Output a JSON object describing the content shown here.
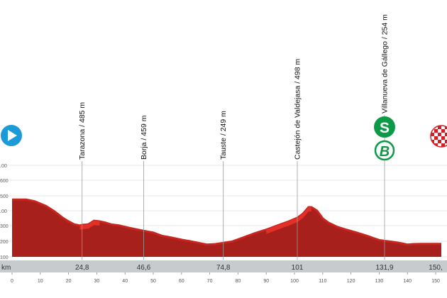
{
  "chart_data": {
    "type": "area",
    "title": "",
    "xlabel": "",
    "ylabel": "",
    "xlim": [
      0,
      152
    ],
    "ylim": [
      0,
      650
    ],
    "x_ticks": [
      0,
      10,
      20,
      30,
      40,
      50,
      60,
      70,
      80,
      90,
      100,
      110,
      120,
      130,
      140,
      150
    ],
    "y_axis_labels": [
      ".00",
      "600",
      "500",
      ".00",
      "300",
      "200",
      "100"
    ],
    "km_bar_labels": [
      "km",
      "24,8",
      "46,6",
      "74,8",
      "101",
      "131,9",
      "150,"
    ],
    "colors": {
      "fill": "#a8201c",
      "fill_top": "#c8251f",
      "highlight": "#e8322a",
      "km_bar": "#c8cbcd",
      "start_icon": "#1a9ad6",
      "sprint_green": "#0d9a48",
      "finish_red": "#d41f26"
    },
    "series": [
      {
        "x": [
          0,
          5,
          8,
          10,
          12,
          15,
          18,
          20,
          22,
          24,
          24.8,
          27,
          29,
          31,
          33,
          35,
          38,
          41,
          44,
          46.6,
          50,
          53,
          56,
          60,
          63,
          66,
          69,
          72,
          74.8,
          78,
          82,
          86,
          90,
          94,
          98,
          101,
          103,
          105,
          106,
          108,
          110,
          112,
          115,
          118,
          122,
          126,
          128,
          130,
          131.9,
          135,
          138,
          140,
          142,
          145,
          148,
          152
        ],
        "values": [
          485,
          485,
          470,
          450,
          430,
          385,
          330,
          300,
          275,
          265,
          270,
          275,
          305,
          300,
          290,
          275,
          265,
          248,
          233,
          220,
          205,
          178,
          165,
          145,
          132,
          118,
          104,
          108,
          118,
          130,
          165,
          200,
          230,
          265,
          300,
          330,
          365,
          420,
          420,
          390,
          325,
          290,
          255,
          232,
          205,
          175,
          158,
          142,
          135,
          126,
          114,
          104,
          108,
          110,
          110,
          110
        ]
      }
    ],
    "locations": [
      {
        "name": "Tarazona / 485 m",
        "km": 24.8,
        "alt": 485
      },
      {
        "name": "Borja / 459 m",
        "km": 46.6,
        "alt": 459
      },
      {
        "name": "Tauste / 249 m",
        "km": 74.8,
        "alt": 249
      },
      {
        "name": "Castejón de Valdejasa / 498 m",
        "km": 101,
        "alt": 498
      },
      {
        "name": "Villanueva de Gállego / 254 m",
        "km": 131.9,
        "alt": 254
      }
    ],
    "badges": {
      "sprint": "S",
      "bonus": "B"
    }
  }
}
